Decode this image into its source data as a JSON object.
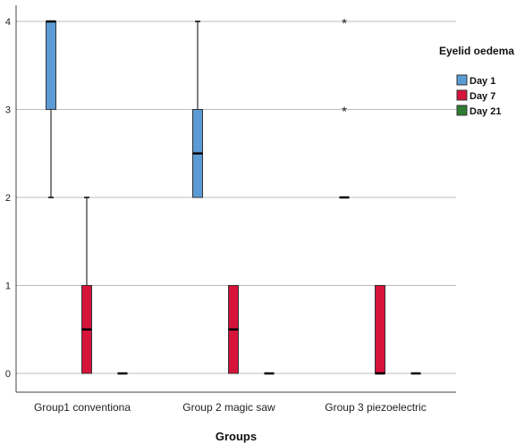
{
  "chart_data": {
    "type": "boxplot",
    "title": "",
    "xlabel": "Groups",
    "ylabel": "",
    "ylim": [
      0,
      4
    ],
    "yticks": [
      0,
      1,
      2,
      3,
      4
    ],
    "grid": true,
    "legend_placement": "right",
    "legend_title": "Eyelid oedema",
    "categories": [
      "Group1 conventiona",
      "Group 2 magic saw",
      "Group 3 piezoelectric"
    ],
    "series": [
      {
        "name": "Day 1",
        "color": "#5b9bd5",
        "boxes": [
          {
            "min": 2,
            "q1": 3,
            "median": 4,
            "q3": 4,
            "max": 4,
            "outliers": []
          },
          {
            "min": 2,
            "q1": 2,
            "median": 2.5,
            "q3": 3,
            "max": 4,
            "outliers": []
          },
          {
            "min": 2,
            "q1": 2,
            "median": 2,
            "q3": 2,
            "max": 2,
            "outliers": [
              3,
              4
            ]
          }
        ]
      },
      {
        "name": "Day 7",
        "color": "#d6133b",
        "boxes": [
          {
            "min": 0,
            "q1": 0,
            "median": 0.5,
            "q3": 1,
            "max": 2,
            "outliers": []
          },
          {
            "min": 0,
            "q1": 0,
            "median": 0.5,
            "q3": 1,
            "max": 1,
            "outliers": []
          },
          {
            "min": 0,
            "q1": 0,
            "median": 0,
            "q3": 1,
            "max": 1,
            "outliers": []
          }
        ]
      },
      {
        "name": "Day 21",
        "color": "#2e7d32",
        "boxes": [
          {
            "min": 0,
            "q1": 0,
            "median": 0,
            "q3": 0,
            "max": 0,
            "outliers": []
          },
          {
            "min": 0,
            "q1": 0,
            "median": 0,
            "q3": 0,
            "max": 0,
            "outliers": []
          },
          {
            "min": 0,
            "q1": 0,
            "median": 0,
            "q3": 0,
            "max": 0,
            "outliers": []
          }
        ]
      }
    ]
  }
}
